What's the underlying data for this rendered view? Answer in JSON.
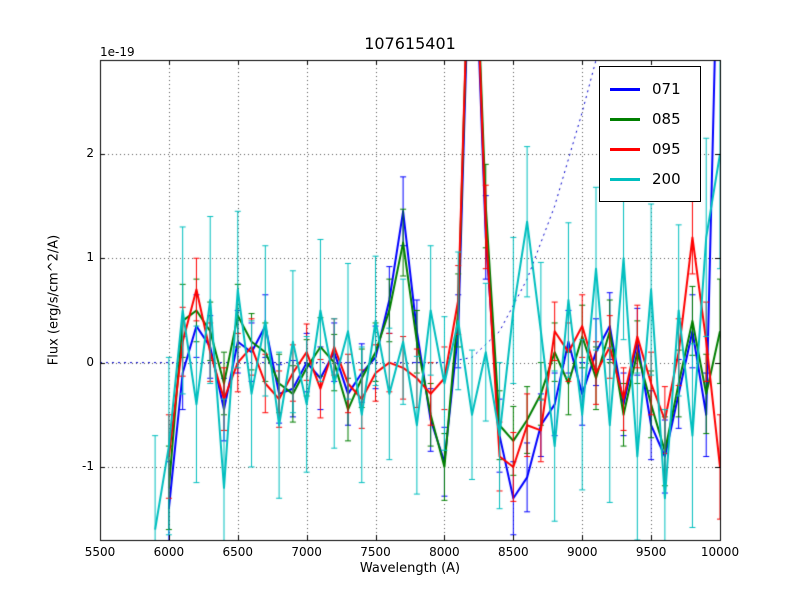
{
  "chart_data": {
    "type": "line",
    "title": "107615401",
    "xlabel": "Wavelength (A)",
    "ylabel": "Flux (erg/s/cm^2/A)",
    "y_offset_text": "1e-19",
    "xlim": [
      5500,
      10000
    ],
    "ylim": [
      -1.7,
      2.9
    ],
    "xticks": [
      5500,
      6000,
      6500,
      7000,
      7500,
      8000,
      8500,
      9000,
      9500,
      10000
    ],
    "xtick_labels": [
      "5500",
      "6000",
      "6500",
      "7000",
      "7500",
      "8000",
      "8500",
      "9000",
      "9500",
      "10000"
    ],
    "yticks": [
      -1,
      0,
      1,
      2
    ],
    "ytick_labels": [
      "-1",
      "0",
      "1",
      "2"
    ],
    "grid": true,
    "grid_color": "#555555",
    "axes_color": "#000000",
    "legend_position": "upper right",
    "errorbars": true,
    "x": [
      5900,
      6000,
      6100,
      6200,
      6300,
      6400,
      6500,
      6600,
      6700,
      6800,
      6900,
      7000,
      7100,
      7200,
      7300,
      7400,
      7500,
      7600,
      7700,
      7800,
      7900,
      8000,
      8100,
      8200,
      8300,
      8400,
      8500,
      8600,
      8700,
      8800,
      8900,
      9000,
      9100,
      9200,
      9300,
      9400,
      9500,
      9600,
      9700,
      9800,
      9900,
      10000
    ],
    "series": [
      {
        "label": "",
        "name": "zero-reference-dotted",
        "color": "#0000cc",
        "lw": 1,
        "style": "dotted",
        "x": [
          5500,
          6000,
          6500,
          7000,
          7500,
          8000,
          8200,
          8400,
          8600,
          8800,
          9000,
          9100,
          9200
        ],
        "y": [
          0,
          0,
          0,
          0,
          0,
          0,
          0.05,
          0.3,
          0.8,
          1.5,
          2.4,
          2.9,
          3.5
        ]
      },
      {
        "label": "071",
        "color": "#0000ff",
        "lw": 2,
        "y": [
          null,
          -1.4,
          -0.1,
          0.35,
          0.15,
          -0.45,
          0.2,
          0.1,
          0.35,
          -0.3,
          -0.25,
          0,
          -0.15,
          0.1,
          -0.3,
          -0.1,
          0.05,
          0.6,
          1.45,
          0.3,
          -0.55,
          -0.95,
          0.3,
          4.8,
          1.2,
          -0.7,
          -1.3,
          -1.1,
          -0.6,
          -0.4,
          0.2,
          -0.3,
          0.1,
          0.35,
          -0.4,
          0.2,
          -0.6,
          -0.9,
          -0.3,
          0.3,
          -0.5,
          5.0
        ],
        "err": [
          null,
          0.45,
          0.35,
          0.3,
          0.3,
          0.3,
          0.3,
          0.28,
          0.3,
          0.28,
          0.27,
          0.28,
          0.3,
          0.28,
          0.3,
          0.28,
          0.3,
          0.32,
          0.33,
          0.3,
          0.3,
          0.33,
          0.35,
          0.5,
          0.4,
          0.35,
          0.35,
          0.33,
          0.3,
          0.3,
          0.3,
          0.3,
          0.32,
          0.32,
          0.3,
          0.32,
          0.33,
          0.35,
          0.33,
          0.35,
          0.4,
          0.6
        ]
      },
      {
        "label": "085",
        "color": "#007f00",
        "lw": 2,
        "y": [
          null,
          -1.2,
          0.4,
          0.5,
          0.3,
          -0.2,
          0.45,
          0.2,
          0.1,
          -0.2,
          -0.3,
          -0.05,
          0.15,
          0,
          -0.45,
          -0.15,
          0.1,
          0.5,
          1.15,
          0.2,
          -0.5,
          -1.0,
          0.5,
          5.0,
          1.5,
          -0.6,
          -0.75,
          -0.55,
          -0.3,
          0.1,
          -0.2,
          0.25,
          -0.15,
          0.3,
          -0.5,
          0.1,
          -0.4,
          -0.85,
          -0.2,
          0.4,
          -0.3,
          0.3
        ],
        "err": [
          null,
          0.4,
          0.35,
          0.3,
          0.28,
          0.3,
          0.3,
          0.27,
          0.28,
          0.28,
          0.27,
          0.27,
          0.28,
          0.27,
          0.3,
          0.28,
          0.28,
          0.3,
          0.32,
          0.3,
          0.3,
          0.32,
          0.35,
          0.5,
          0.4,
          0.33,
          0.33,
          0.32,
          0.3,
          0.28,
          0.3,
          0.3,
          0.3,
          0.3,
          0.3,
          0.3,
          0.32,
          0.33,
          0.32,
          0.33,
          0.38,
          0.5
        ]
      },
      {
        "label": "095",
        "color": "#ff0000",
        "lw": 2,
        "y": [
          null,
          -0.9,
          0.2,
          0.7,
          0.1,
          -0.35,
          0,
          0.15,
          -0.2,
          -0.35,
          -0.1,
          0.1,
          -0.25,
          0.15,
          -0.2,
          -0.35,
          -0.1,
          0,
          -0.05,
          -0.15,
          -0.3,
          -0.15,
          0.6,
          5.0,
          1.3,
          -0.9,
          -1.0,
          -0.6,
          -0.65,
          0.3,
          0.1,
          0.35,
          -0.1,
          0.15,
          -0.35,
          0.25,
          -0.2,
          -0.55,
          0.1,
          1.2,
          0.2,
          -1.0
        ],
        "err": [
          null,
          0.4,
          0.33,
          0.3,
          0.28,
          0.3,
          0.28,
          0.27,
          0.28,
          0.27,
          0.27,
          0.27,
          0.28,
          0.27,
          0.28,
          0.28,
          0.27,
          0.28,
          0.3,
          0.28,
          0.3,
          0.3,
          0.33,
          0.5,
          0.4,
          0.33,
          0.33,
          0.3,
          0.3,
          0.28,
          0.28,
          0.3,
          0.3,
          0.3,
          0.3,
          0.3,
          0.3,
          0.32,
          0.32,
          0.35,
          0.38,
          0.5
        ]
      },
      {
        "label": "200",
        "color": "#00bfbf",
        "lw": 2,
        "y": [
          -1.6,
          -0.8,
          0.5,
          -0.4,
          0.6,
          -1.2,
          0.7,
          -0.3,
          0.4,
          -0.6,
          0.2,
          -0.4,
          0.5,
          -0.2,
          0.3,
          -0.5,
          0.4,
          -0.3,
          0.2,
          -0.6,
          0.5,
          -0.2,
          0.4,
          -0.5,
          0.1,
          -0.7,
          0.5,
          1.35,
          0.3,
          -0.8,
          0.6,
          -0.5,
          0.9,
          -0.6,
          1.0,
          -0.9,
          0.7,
          -1.3,
          0.5,
          -0.7,
          1.2,
          2.0
        ],
        "err": [
          0.9,
          0.85,
          0.8,
          0.75,
          0.8,
          0.85,
          0.75,
          0.7,
          0.72,
          0.7,
          0.68,
          0.65,
          0.68,
          0.62,
          0.65,
          0.65,
          0.62,
          0.63,
          0.6,
          0.66,
          0.62,
          0.64,
          0.66,
          0.62,
          0.66,
          0.7,
          0.7,
          0.72,
          0.66,
          0.72,
          0.74,
          0.72,
          0.78,
          0.74,
          0.78,
          0.8,
          0.82,
          0.85,
          0.82,
          0.88,
          0.95,
          1.1
        ]
      }
    ]
  }
}
